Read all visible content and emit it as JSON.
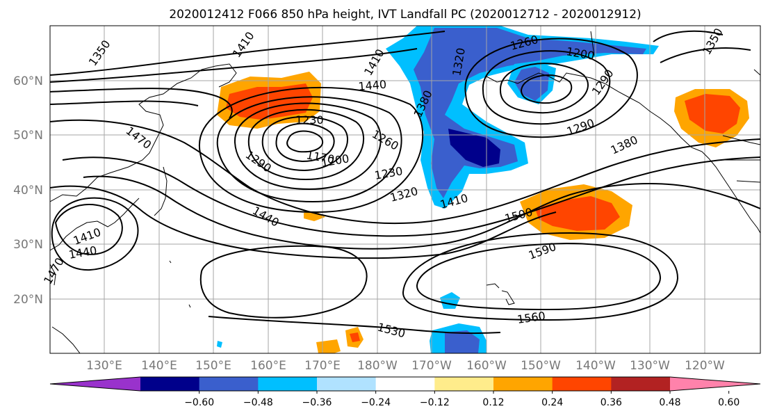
{
  "title": "2020012412 F066 850 hPa height, IVT Landfall PC (2020012712 - 2020012912)",
  "latitude_labels": [
    "60°N",
    "50°N",
    "40°N",
    "30°N",
    "20°N"
  ],
  "longitude_labels": [
    "130°E",
    "140°E",
    "150°E",
    "160°E",
    "170°E",
    "180°W",
    "170°W",
    "160°W",
    "150°W",
    "140°W",
    "130°W",
    "120°W"
  ],
  "colorbar": {
    "ticks": [
      "−0.60",
      "−0.48",
      "−0.36",
      "−0.24",
      "−0.12",
      "0.12",
      "0.24",
      "0.36",
      "0.48",
      "0.60"
    ],
    "colors": [
      "#9932cc",
      "#00008b",
      "#3a5fcd",
      "#00bfff",
      "#b0e2ff",
      "#ffffff",
      "#ffec8b",
      "#ffa500",
      "#ff4500",
      "#b22222",
      "#ff82ab"
    ]
  },
  "contour_labels": [
    "1350",
    "1410",
    "1410",
    "1320",
    "1260",
    "1200",
    "1440",
    "1380",
    "1230",
    "1260",
    "1170",
    "1200",
    "1290",
    "1290",
    "1380",
    "1470",
    "1320",
    "1410",
    "1500",
    "1440",
    "1590",
    "1410",
    "1440",
    "1470",
    "1530",
    "1560",
    "1350",
    "1230",
    "1290"
  ]
}
